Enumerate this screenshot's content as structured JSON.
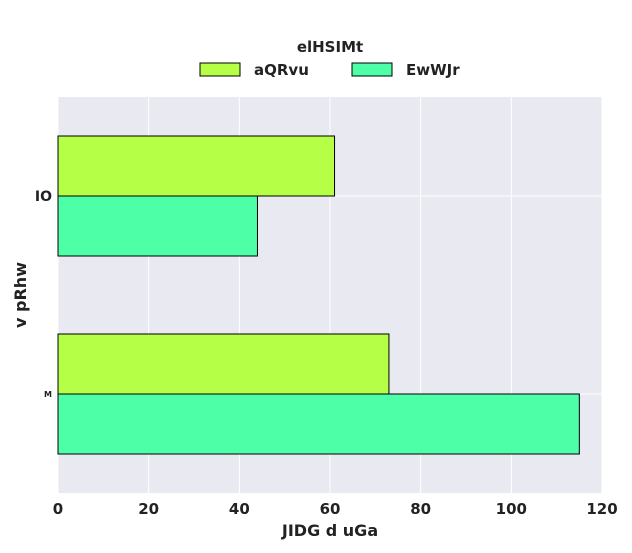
{
  "chart_data": {
    "type": "bar",
    "orientation": "horizontal",
    "legend_title": "elHSIMt",
    "legend_position": "top-center",
    "xlabel": "JIDG d uGa",
    "ylabel": "v pRhw",
    "categories": [
      "IO",
      "M"
    ],
    "series": [
      {
        "name": "aQRvu",
        "values": [
          61,
          73
        ],
        "color": "#b5ff47"
      },
      {
        "name": "EwWJr",
        "values": [
          44,
          115
        ],
        "color": "#4dffa6"
      }
    ],
    "xlim": [
      0,
      120
    ],
    "xticks": [
      0,
      20,
      40,
      60,
      80,
      100,
      120
    ],
    "grid": true,
    "background": "#e9e9f1"
  }
}
